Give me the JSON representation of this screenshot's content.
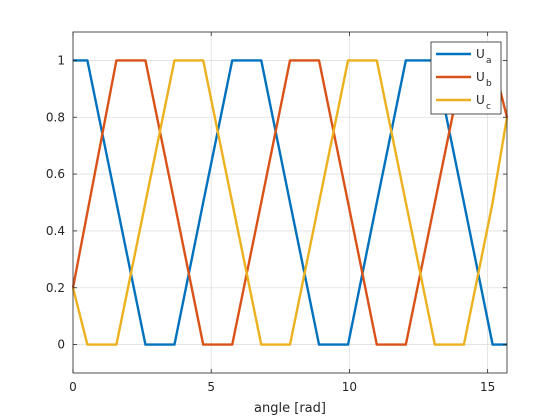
{
  "chart_data": {
    "type": "line",
    "xlabel": "angle [rad]",
    "ylabel": "",
    "title": "",
    "xlim": [
      0,
      15.7
    ],
    "ylim": [
      -0.1,
      1.1
    ],
    "xticks": [
      0,
      5,
      10,
      15
    ],
    "yticks": [
      0,
      0.2,
      0.4,
      0.6,
      0.8,
      1
    ],
    "xtick_labels": [
      "0",
      "5",
      "10",
      "15"
    ],
    "ytick_labels": [
      "0",
      "0.2",
      "0.4",
      "0.6",
      "0.8",
      "1"
    ],
    "grid": true,
    "legend_position": "top-right",
    "series": [
      {
        "name": "U",
        "subscript": "a",
        "color": "#0072BD",
        "x": [
          0,
          0.52,
          2.62,
          3.67,
          4.71,
          5.76,
          6.81,
          7.85,
          8.9,
          9.95,
          10.99,
          12.04,
          13.09,
          14.14,
          15.18,
          15.7
        ],
        "y": [
          1,
          1,
          0,
          0,
          0.5,
          1,
          1,
          0.5,
          0,
          0,
          0.5,
          1,
          1,
          0.5,
          0,
          0
        ]
      },
      {
        "name": "U",
        "subscript": "b",
        "color": "#D95319",
        "x": [
          0,
          1.57,
          2.62,
          3.67,
          4.71,
          5.76,
          6.81,
          7.85,
          8.9,
          9.95,
          10.99,
          12.04,
          13.09,
          14.14,
          15.18,
          15.7
        ],
        "y": [
          0.2,
          1,
          1,
          0.5,
          0,
          0,
          0.5,
          1,
          1,
          0.5,
          0,
          0,
          0.5,
          1,
          1,
          0.8
        ]
      },
      {
        "name": "U",
        "subscript": "c",
        "color": "#EDB120",
        "x": [
          0,
          0.52,
          1.57,
          2.62,
          3.67,
          4.71,
          5.76,
          6.81,
          7.85,
          8.9,
          9.95,
          10.99,
          12.04,
          13.09,
          14.14,
          15.18,
          15.7
        ],
        "y": [
          0.2,
          0,
          0,
          0.5,
          1,
          1,
          0.5,
          0,
          0,
          0.5,
          1,
          1,
          0.5,
          0,
          0,
          0.5,
          0.8
        ]
      }
    ]
  }
}
